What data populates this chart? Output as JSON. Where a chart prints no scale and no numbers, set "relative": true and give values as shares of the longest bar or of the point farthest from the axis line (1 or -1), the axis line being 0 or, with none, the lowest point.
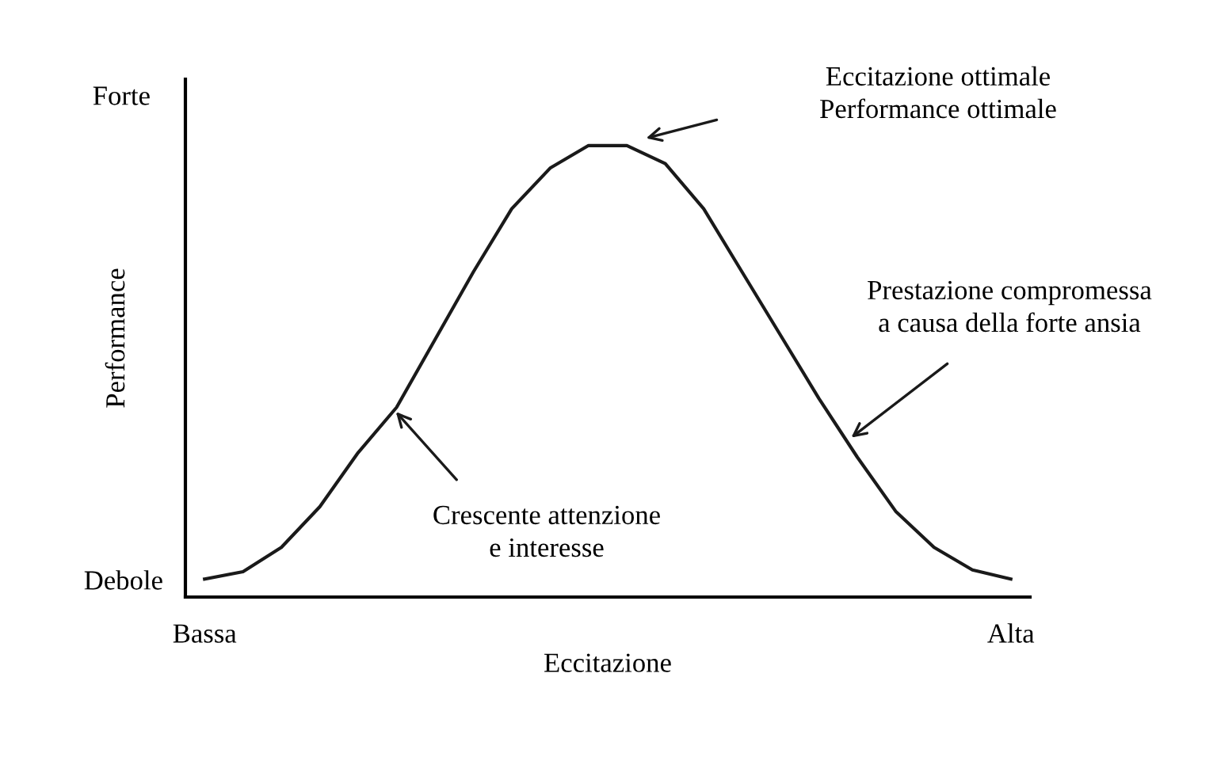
{
  "chart_data": {
    "type": "line",
    "relative": true,
    "xlabel": "Eccitazione",
    "ylabel": "Performance",
    "categories": [
      "Bassa",
      null,
      null,
      null,
      null,
      null,
      null,
      null,
      null,
      null,
      null,
      null,
      null,
      null,
      null,
      null,
      null,
      null,
      null,
      null,
      null,
      "Alta"
    ],
    "series": [
      {
        "color": "#1a1a1a",
        "values": [
          0.04,
          0.056,
          0.11,
          0.2,
          0.32,
          0.42,
          0.57,
          0.72,
          0.86,
          0.95,
          1.0,
          1.0,
          0.96,
          0.86,
          0.72,
          0.58,
          0.44,
          0.31,
          0.19,
          0.11,
          0.06,
          0.04
        ]
      }
    ],
    "grid": false,
    "legend": false,
    "marker": "none",
    "line_style": "solid",
    "annotations": [
      "Forte",
      "Debole",
      "Eccitazione ottimale\nPerformance ottimale",
      "Prestazione compromessa\na causa della forte ansia",
      "Crescente attenzione\ne interesse"
    ]
  }
}
